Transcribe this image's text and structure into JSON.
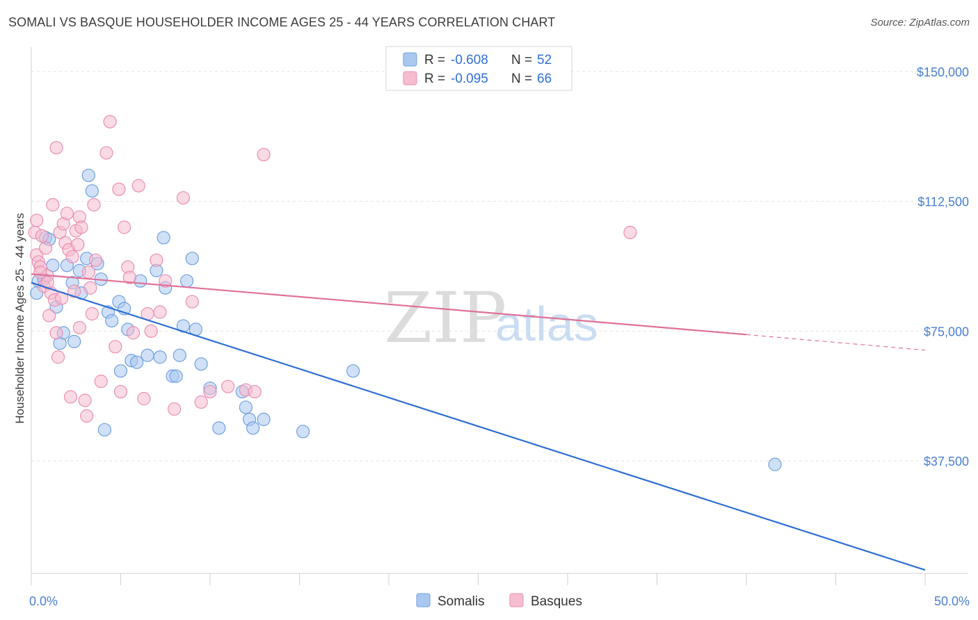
{
  "title": "SOMALI VS BASQUE HOUSEHOLDER INCOME AGES 25 - 44 YEARS CORRELATION CHART",
  "source": "Source: ZipAtlas.com",
  "watermark": {
    "zip": "ZIP",
    "atlas": "atlas"
  },
  "legend": {
    "rows": [
      {
        "r_label": "R = ",
        "r_value": "-0.608",
        "n_label": "N = ",
        "n_value": "52",
        "color": "#a9c8f0",
        "stroke": "#6f9fe0"
      },
      {
        "r_label": "R = ",
        "r_value": "-0.095",
        "n_label": "N = ",
        "n_value": "66",
        "color": "#f6bcd0",
        "stroke": "#ea8fb0"
      }
    ]
  },
  "bottom_legend": [
    {
      "label": "Somalis",
      "color": "#a9c8f0",
      "stroke": "#6f9fe0"
    },
    {
      "label": "Basques",
      "color": "#f6bcd0",
      "stroke": "#ea8fb0"
    }
  ],
  "chart_data": {
    "type": "scatter",
    "title": "SOMALI VS BASQUE HOUSEHOLDER INCOME AGES 25 - 44 YEARS CORRELATION CHART",
    "xlabel": "",
    "ylabel": "Householder Income Ages 25 - 44 years",
    "xlim": [
      0,
      50
    ],
    "ylim": [
      5000,
      155000
    ],
    "x_tick_labels": [
      {
        "value": 0,
        "label": "0.0%"
      },
      {
        "value": 50,
        "label": "50.0%"
      }
    ],
    "y_tick_labels": [
      {
        "value": 37500,
        "label": "$37,500"
      },
      {
        "value": 75000,
        "label": "$75,000"
      },
      {
        "value": 112500,
        "label": "$112,500"
      },
      {
        "value": 150000,
        "label": "$150,000"
      }
    ],
    "grid": true,
    "series": [
      {
        "name": "Somalis",
        "color": "#a9c8f0",
        "stroke": "#6f9fe0",
        "line_color": "#2f6fd3",
        "trend": {
          "x0": 0,
          "y0": 89000,
          "x1": 50,
          "y1": 6000
        },
        "points": [
          [
            0.3,
            86000
          ],
          [
            0.4,
            89500
          ],
          [
            0.7,
            90000
          ],
          [
            0.8,
            102000
          ],
          [
            1.0,
            101500
          ],
          [
            1.2,
            94000
          ],
          [
            1.4,
            82000
          ],
          [
            1.6,
            71500
          ],
          [
            1.8,
            74500
          ],
          [
            2.0,
            94000
          ],
          [
            2.3,
            89000
          ],
          [
            2.4,
            72000
          ],
          [
            2.7,
            92500
          ],
          [
            2.8,
            86000
          ],
          [
            3.1,
            96000
          ],
          [
            3.2,
            120000
          ],
          [
            3.4,
            115500
          ],
          [
            3.7,
            94500
          ],
          [
            3.9,
            90000
          ],
          [
            4.1,
            46500
          ],
          [
            4.3,
            80500
          ],
          [
            4.5,
            78000
          ],
          [
            4.9,
            83500
          ],
          [
            5.0,
            63500
          ],
          [
            5.2,
            81500
          ],
          [
            5.4,
            75500
          ],
          [
            5.6,
            66500
          ],
          [
            5.9,
            66000
          ],
          [
            6.1,
            89500
          ],
          [
            6.5,
            68000
          ],
          [
            7.0,
            92500
          ],
          [
            7.2,
            67500
          ],
          [
            7.4,
            102000
          ],
          [
            7.5,
            87500
          ],
          [
            7.9,
            62000
          ],
          [
            8.1,
            62000
          ],
          [
            8.3,
            68000
          ],
          [
            8.5,
            76500
          ],
          [
            8.7,
            89500
          ],
          [
            9.0,
            96000
          ],
          [
            9.2,
            75500
          ],
          [
            9.5,
            65500
          ],
          [
            10.0,
            58500
          ],
          [
            10.5,
            47000
          ],
          [
            11.8,
            57500
          ],
          [
            12.0,
            53000
          ],
          [
            12.2,
            49500
          ],
          [
            12.4,
            47000
          ],
          [
            13.0,
            49500
          ],
          [
            15.2,
            46000
          ],
          [
            18.0,
            63500
          ],
          [
            41.6,
            36500
          ]
        ]
      },
      {
        "name": "Basques",
        "color": "#f6bcd0",
        "stroke": "#ea8fb0",
        "line_color": "#e07098",
        "trend": {
          "x0": 0,
          "y0": 91500,
          "x1": 40,
          "y1": 74000,
          "dash_x1": 50,
          "dash_y1": 69500
        },
        "points": [
          [
            0.2,
            103500
          ],
          [
            0.3,
            107000
          ],
          [
            0.3,
            97000
          ],
          [
            0.4,
            95000
          ],
          [
            0.5,
            93500
          ],
          [
            0.6,
            102500
          ],
          [
            0.7,
            88000
          ],
          [
            0.8,
            99000
          ],
          [
            0.9,
            91000
          ],
          [
            1.0,
            79500
          ],
          [
            1.1,
            86000
          ],
          [
            1.2,
            111500
          ],
          [
            1.3,
            84000
          ],
          [
            1.4,
            74500
          ],
          [
            1.4,
            128000
          ],
          [
            1.5,
            67500
          ],
          [
            1.6,
            103500
          ],
          [
            1.8,
            106000
          ],
          [
            1.9,
            100500
          ],
          [
            2.0,
            109000
          ],
          [
            2.1,
            98500
          ],
          [
            2.2,
            56000
          ],
          [
            2.3,
            96500
          ],
          [
            2.5,
            104000
          ],
          [
            2.6,
            100000
          ],
          [
            2.7,
            108000
          ],
          [
            2.7,
            76000
          ],
          [
            2.8,
            105000
          ],
          [
            3.0,
            55000
          ],
          [
            3.1,
            50500
          ],
          [
            3.2,
            92000
          ],
          [
            3.3,
            87500
          ],
          [
            3.4,
            80000
          ],
          [
            3.5,
            111500
          ],
          [
            3.6,
            95500
          ],
          [
            3.9,
            60500
          ],
          [
            4.2,
            126500
          ],
          [
            4.4,
            135500
          ],
          [
            4.7,
            70500
          ],
          [
            4.9,
            116000
          ],
          [
            5.0,
            57500
          ],
          [
            5.2,
            105000
          ],
          [
            5.4,
            93500
          ],
          [
            5.5,
            90500
          ],
          [
            5.7,
            74500
          ],
          [
            6.0,
            117000
          ],
          [
            6.3,
            55500
          ],
          [
            6.5,
            80000
          ],
          [
            6.7,
            75000
          ],
          [
            7.0,
            95500
          ],
          [
            7.2,
            80500
          ],
          [
            7.5,
            89500
          ],
          [
            8.0,
            52500
          ],
          [
            8.5,
            113500
          ],
          [
            9.0,
            83500
          ],
          [
            9.5,
            54500
          ],
          [
            10.0,
            57500
          ],
          [
            11.0,
            59000
          ],
          [
            12.0,
            58000
          ],
          [
            12.5,
            57500
          ],
          [
            13.0,
            126000
          ],
          [
            33.5,
            103500
          ],
          [
            0.9,
            89000
          ],
          [
            1.7,
            84500
          ],
          [
            2.4,
            86500
          ],
          [
            0.5,
            92000
          ]
        ]
      }
    ]
  }
}
